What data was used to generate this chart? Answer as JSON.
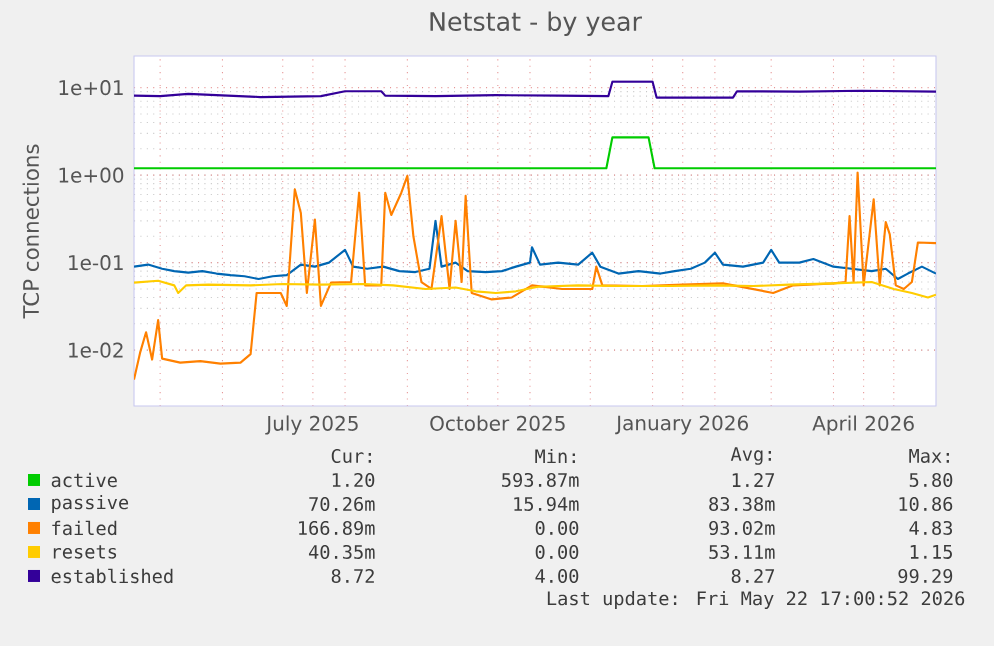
{
  "chart_data": {
    "type": "line",
    "title": "Netstat - by year",
    "ylabel": "TCP connections",
    "log": "y",
    "grid": true,
    "legend": "bottom",
    "xlim": [
      "2025-04-18",
      "2026-05-22"
    ],
    "ylim": [
      0.0023,
      23
    ],
    "xticks": [
      {
        "value": "2025-05-01",
        "label": null
      },
      {
        "value": "2025-06-01",
        "label": null
      },
      {
        "value": "2025-07-01",
        "label": null
      },
      {
        "value": "2025-07-16",
        "label": "July 2025"
      },
      {
        "value": "2025-08-01",
        "label": null
      },
      {
        "value": "2025-09-01",
        "label": null
      },
      {
        "value": "2025-10-01",
        "label": null
      },
      {
        "value": "2025-10-16",
        "label": "October 2025"
      },
      {
        "value": "2025-11-01",
        "label": null
      },
      {
        "value": "2025-12-01",
        "label": null
      },
      {
        "value": "2026-01-01",
        "label": null
      },
      {
        "value": "2026-01-16",
        "label": "January 2026"
      },
      {
        "value": "2026-02-01",
        "label": null
      },
      {
        "value": "2026-03-01",
        "label": null
      },
      {
        "value": "2026-04-01",
        "label": null
      },
      {
        "value": "2026-04-16",
        "label": "April 2026"
      },
      {
        "value": "2026-05-01",
        "label": null
      }
    ],
    "yticks": [
      {
        "value": 0.01,
        "label": "1e-02"
      },
      {
        "value": 0.1,
        "label": "1e-01"
      },
      {
        "value": 1,
        "label": "1e+00"
      },
      {
        "value": 10,
        "label": "1e+01"
      }
    ],
    "series": [
      {
        "name": "active",
        "color": "#00cc00",
        "x": [
          "2025-04-18",
          "2025-12-09",
          "2025-12-12",
          "2025-12-30",
          "2026-01-02",
          "2026-05-22"
        ],
        "values": [
          1.2,
          1.2,
          2.7,
          2.7,
          1.2,
          1.2
        ]
      },
      {
        "name": "passive",
        "color": "#0066b3",
        "x": [
          "2025-04-18",
          "2025-04-25",
          "2025-05-02",
          "2025-05-08",
          "2025-05-15",
          "2025-05-22",
          "2025-05-29",
          "2025-06-05",
          "2025-06-12",
          "2025-06-19",
          "2025-06-26",
          "2025-07-03",
          "2025-07-10",
          "2025-07-17",
          "2025-07-24",
          "2025-08-01",
          "2025-08-05",
          "2025-08-12",
          "2025-08-20",
          "2025-08-28",
          "2025-09-05",
          "2025-09-12",
          "2025-09-15",
          "2025-09-18",
          "2025-09-25",
          "2025-10-01",
          "2025-10-10",
          "2025-10-18",
          "2025-10-25",
          "2025-11-01",
          "2025-11-02",
          "2025-11-06",
          "2025-11-15",
          "2025-11-25",
          "2025-12-02",
          "2025-12-06",
          "2025-12-15",
          "2025-12-25",
          "2026-01-05",
          "2026-01-12",
          "2026-01-20",
          "2026-01-27",
          "2026-02-01",
          "2026-02-05",
          "2026-02-15",
          "2026-02-25",
          "2026-03-01",
          "2026-03-05",
          "2026-03-15",
          "2026-03-22",
          "2026-04-01",
          "2026-04-10",
          "2026-04-20",
          "2026-04-27",
          "2026-05-03",
          "2026-05-08",
          "2026-05-15",
          "2026-05-22"
        ],
        "values": [
          0.09,
          0.095,
          0.085,
          0.08,
          0.077,
          0.08,
          0.075,
          0.072,
          0.07,
          0.065,
          0.07,
          0.072,
          0.095,
          0.09,
          0.1,
          0.14,
          0.09,
          0.085,
          0.09,
          0.08,
          0.078,
          0.085,
          0.3,
          0.09,
          0.1,
          0.08,
          0.078,
          0.08,
          0.09,
          0.1,
          0.15,
          0.095,
          0.1,
          0.095,
          0.13,
          0.09,
          0.075,
          0.08,
          0.075,
          0.08,
          0.085,
          0.1,
          0.13,
          0.095,
          0.09,
          0.1,
          0.14,
          0.1,
          0.1,
          0.11,
          0.09,
          0.085,
          0.08,
          0.085,
          0.065,
          0.075,
          0.09,
          0.075
        ]
      },
      {
        "name": "failed",
        "color": "#ff8000",
        "x": [
          "2025-04-18",
          "2025-04-21",
          "2025-04-24",
          "2025-04-27",
          "2025-04-30",
          "2025-05-02",
          "2025-05-11",
          "2025-05-21",
          "2025-05-31",
          "2025-06-10",
          "2025-06-15",
          "2025-06-18",
          "2025-06-30",
          "2025-07-03",
          "2025-07-07",
          "2025-07-10",
          "2025-07-13",
          "2025-07-17",
          "2025-07-20",
          "2025-07-25",
          "2025-08-04",
          "2025-08-08",
          "2025-08-11",
          "2025-08-19",
          "2025-08-21",
          "2025-08-24",
          "2025-08-29",
          "2025-09-01",
          "2025-09-04",
          "2025-09-08",
          "2025-09-13",
          "2025-09-18",
          "2025-09-22",
          "2025-09-25",
          "2025-09-28",
          "2025-09-30",
          "2025-10-03",
          "2025-10-13",
          "2025-10-23",
          "2025-11-02",
          "2025-11-17",
          "2025-12-02",
          "2025-12-04",
          "2025-12-07",
          "2025-12-27",
          "2026-01-16",
          "2026-02-05",
          "2026-03-02",
          "2026-03-12",
          "2026-04-01",
          "2026-04-07",
          "2026-04-09",
          "2026-04-11",
          "2026-04-13",
          "2026-04-16",
          "2026-04-21",
          "2026-04-24",
          "2026-04-27",
          "2026-04-29",
          "2026-05-02",
          "2026-05-06",
          "2026-05-10",
          "2026-05-13",
          "2026-05-22"
        ],
        "values": [
          0.0046,
          0.0093,
          0.016,
          0.0078,
          0.022,
          0.008,
          0.0072,
          0.0075,
          0.007,
          0.0072,
          0.009,
          0.045,
          0.045,
          0.032,
          0.69,
          0.37,
          0.045,
          0.31,
          0.032,
          0.059,
          0.06,
          0.63,
          0.055,
          0.055,
          0.63,
          0.35,
          0.63,
          0.98,
          0.2,
          0.06,
          0.05,
          0.34,
          0.05,
          0.3,
          0.06,
          0.58,
          0.045,
          0.038,
          0.04,
          0.055,
          0.05,
          0.05,
          0.09,
          0.055,
          0.054,
          0.056,
          0.058,
          0.045,
          0.055,
          0.058,
          0.06,
          0.34,
          0.06,
          1.07,
          0.055,
          0.53,
          0.055,
          0.29,
          0.21,
          0.055,
          0.05,
          0.06,
          0.17,
          0.167
        ]
      },
      {
        "name": "resets",
        "color": "#ffcc00",
        "x": [
          "2025-04-18",
          "2025-04-30",
          "2025-05-08",
          "2025-05-10",
          "2025-05-14",
          "2025-05-25",
          "2025-06-15",
          "2025-07-01",
          "2025-07-20",
          "2025-08-10",
          "2025-08-25",
          "2025-09-10",
          "2025-09-25",
          "2025-10-05",
          "2025-10-15",
          "2025-10-25",
          "2025-11-05",
          "2025-11-25",
          "2025-12-15",
          "2026-01-10",
          "2026-02-01",
          "2026-02-20",
          "2026-03-10",
          "2026-04-01",
          "2026-04-20",
          "2026-05-01",
          "2026-05-10",
          "2026-05-18",
          "2026-05-22"
        ],
        "values": [
          0.059,
          0.062,
          0.055,
          0.045,
          0.055,
          0.056,
          0.055,
          0.057,
          0.056,
          0.057,
          0.055,
          0.05,
          0.052,
          0.047,
          0.045,
          0.047,
          0.053,
          0.055,
          0.054,
          0.054,
          0.055,
          0.054,
          0.056,
          0.058,
          0.06,
          0.05,
          0.045,
          0.04,
          0.043
        ]
      },
      {
        "name": "established",
        "color": "#330099",
        "x": [
          "2025-04-18",
          "2025-05-01",
          "2025-05-15",
          "2025-05-29",
          "2025-06-20",
          "2025-07-20",
          "2025-08-01",
          "2025-08-19",
          "2025-08-21",
          "2025-09-15",
          "2025-10-15",
          "2025-11-15",
          "2025-12-10",
          "2025-12-12",
          "2026-01-01",
          "2026-01-03",
          "2026-02-10",
          "2026-02-12",
          "2026-03-15",
          "2026-04-15",
          "2026-05-22"
        ],
        "values": [
          8.1,
          8.0,
          8.5,
          8.2,
          7.8,
          8.0,
          9.1,
          9.1,
          8.1,
          8.0,
          8.2,
          8.1,
          8.0,
          11.7,
          11.7,
          7.7,
          7.7,
          9.1,
          9.0,
          9.2,
          9.0
        ]
      }
    ],
    "annotations": [
      "Cur:",
      "Min:",
      "Avg:",
      "Max:",
      "1.20",
      "593.87m",
      "1.27",
      "5.80",
      "70.26m",
      "15.94m",
      "83.38m",
      "10.86",
      "166.89m",
      "0.00",
      "93.02m",
      "4.83",
      "40.35m",
      "0.00",
      "53.11m",
      "1.15",
      "8.72",
      "4.00",
      "8.27",
      "99.29",
      "Last update: Fri May 22 17:00:52 2026"
    ]
  }
}
